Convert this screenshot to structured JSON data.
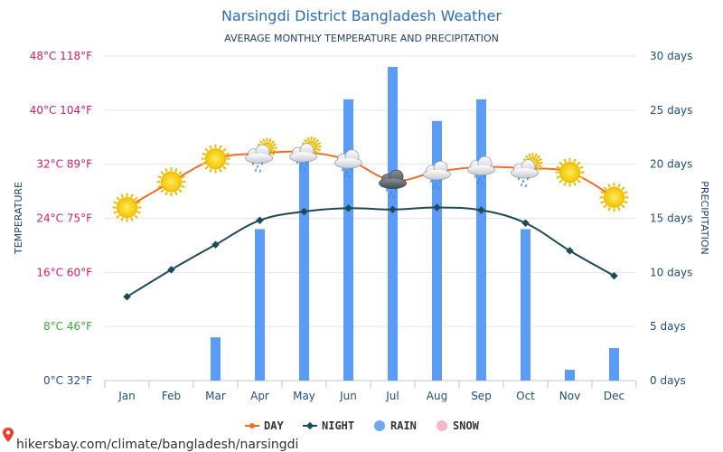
{
  "header": {
    "title": "Narsingdi District Bangladesh Weather",
    "subtitle": "AVERAGE MONTHLY TEMPERATURE AND PRECIPITATION"
  },
  "footer": {
    "url": "hikersbay.com/climate/bangladesh/narsingdi"
  },
  "chart_data": {
    "type": "bar",
    "categories": [
      "Jan",
      "Feb",
      "Mar",
      "Apr",
      "May",
      "Jun",
      "Jul",
      "Aug",
      "Sep",
      "Oct",
      "Nov",
      "Dec"
    ],
    "ylabel_left": "TEMPERATURE",
    "ylabel_right": "PRECIPITATION",
    "left_axis": {
      "range": [
        0,
        48
      ],
      "ticks": [
        {
          "value": 0,
          "label": "0°C 32°F",
          "color": "#1f4f9a"
        },
        {
          "value": 8,
          "label": "8°C 46°F",
          "color": "#3aaa35"
        },
        {
          "value": 16,
          "label": "16°C 60°F",
          "color": "#d81b60"
        },
        {
          "value": 24,
          "label": "24°C 75°F",
          "color": "#d81b60"
        },
        {
          "value": 32,
          "label": "32°C 89°F",
          "color": "#d81b60"
        },
        {
          "value": 40,
          "label": "40°C 104°F",
          "color": "#d81b60"
        },
        {
          "value": 48,
          "label": "48°C 118°F",
          "color": "#d81b60"
        }
      ]
    },
    "right_axis": {
      "range": [
        0,
        30
      ],
      "ticks": [
        {
          "value": 0,
          "label": "0 days"
        },
        {
          "value": 5,
          "label": "5 days"
        },
        {
          "value": 10,
          "label": "10 days"
        },
        {
          "value": 15,
          "label": "15 days"
        },
        {
          "value": 20,
          "label": "20 days"
        },
        {
          "value": 25,
          "label": "25 days"
        },
        {
          "value": 30,
          "label": "30 days"
        }
      ]
    },
    "series": [
      {
        "name": "DAY",
        "type": "line",
        "axis": "left",
        "color": "#f26c23",
        "values": [
          25.6,
          29.4,
          32.8,
          33.6,
          33.8,
          32.6,
          29.6,
          30.9,
          31.6,
          31.4,
          30.8,
          27.1
        ]
      },
      {
        "name": "NIGHT",
        "type": "line",
        "axis": "left",
        "color": "#1e4a57",
        "values": [
          12.4,
          16.4,
          20.1,
          23.7,
          25.0,
          25.5,
          25.3,
          25.6,
          25.2,
          23.3,
          19.2,
          15.5
        ]
      },
      {
        "name": "RAIN",
        "type": "bar",
        "axis": "right",
        "color": "#5b9cf6",
        "values": [
          0,
          0,
          4,
          14,
          21,
          26,
          29,
          24,
          26,
          14,
          1,
          3
        ]
      },
      {
        "name": "SNOW",
        "type": "bar",
        "axis": "right",
        "color": "#f8b8c8",
        "values": [
          0,
          0,
          0,
          0,
          0,
          0,
          0,
          0,
          0,
          0,
          0,
          0
        ]
      }
    ],
    "weather_icons": [
      "sun",
      "sun",
      "sun",
      "sun-rain-cloud",
      "sun-rain-cloud",
      "rain-cloud",
      "storm-cloud",
      "rain-cloud",
      "rain-cloud",
      "sun-rain-cloud",
      "sun",
      "sun"
    ],
    "grid": true,
    "legend_position": "bottom"
  }
}
